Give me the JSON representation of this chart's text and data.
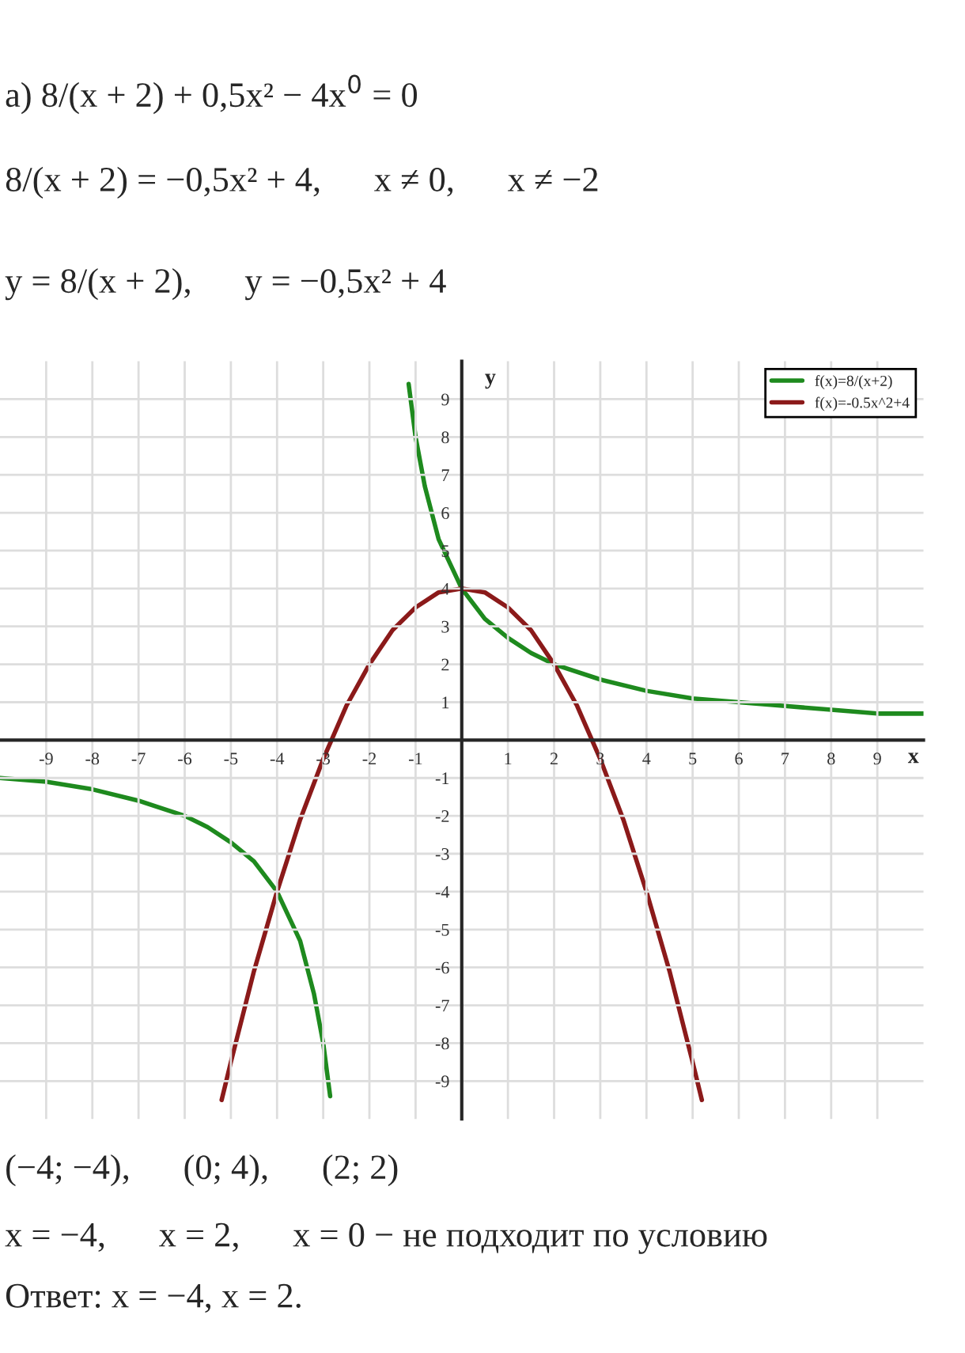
{
  "chart_data": {
    "type": "line",
    "xlabel": "x",
    "ylabel": "y",
    "series": [
      {
        "name": "f(x)=8/(x+2)",
        "color": "#1e8a1e",
        "x": [
          -10,
          -9,
          -8,
          -7,
          -6,
          -5.5,
          -5,
          -4.5,
          -4,
          -3.5,
          -3.2,
          -3,
          -2.85,
          -2,
          -1.15,
          -1,
          -0.8,
          -0.5,
          0,
          0.5,
          1,
          1.5,
          2,
          3,
          4,
          5,
          6,
          7,
          8,
          9,
          10
        ],
        "values": [
          -1,
          -1.1,
          -1.3,
          -1.6,
          -2,
          -2.3,
          -2.7,
          -3.2,
          -4,
          -5.3,
          -6.7,
          -8,
          -9.4,
          null,
          9.4,
          8,
          6.7,
          5.3,
          4,
          3.2,
          2.7,
          2.3,
          2,
          1.6,
          1.3,
          1.1,
          1,
          0.9,
          0.8,
          0.7,
          0.7
        ]
      },
      {
        "name": "f(x)=-0.5x^2+4",
        "color": "#8b1a1a",
        "x": [
          -5.2,
          -5,
          -4.5,
          -4,
          -3.5,
          -3,
          -2.5,
          -2,
          -1.5,
          -1,
          -0.5,
          0,
          0.5,
          1,
          1.5,
          2,
          2.5,
          3,
          3.5,
          4,
          4.5,
          5,
          5.2
        ],
        "values": [
          -9.5,
          -8.5,
          -6.1,
          -4,
          -2.1,
          -0.5,
          0.9,
          2,
          2.9,
          3.5,
          3.9,
          4,
          3.9,
          3.5,
          2.9,
          2,
          0.9,
          -0.5,
          -2.1,
          -4,
          -6.1,
          -8.5,
          -9.5
        ]
      }
    ],
    "xlim": [
      -10,
      10
    ],
    "ylim": [
      -10,
      10
    ],
    "xticks": [
      -9,
      -8,
      -7,
      -6,
      -5,
      -4,
      -3,
      -2,
      -1,
      1,
      2,
      3,
      4,
      5,
      6,
      7,
      8,
      9
    ],
    "yticks": [
      -9,
      -8,
      -7,
      -6,
      -5,
      -4,
      -3,
      -2,
      -1,
      1,
      2,
      3,
      4,
      5,
      6,
      7,
      8,
      9
    ],
    "grid": true,
    "legend": "top right",
    "marker": "none",
    "line_style": "solid",
    "annotations": [
      "a) 8/(x + 2) + 0,5x² − 4x$^{0}$ = 0",
      "8/(x + 2) = −0,5x² + 4,      x ≠ 0,      x ≠ −2",
      "y = 8/(x + 2),      y = −0,5x² + 4",
      "(−4; −4),      (0; 4),      (2; 2)",
      "x = −4,      x = 2,      x = 0 − не подходит по условию",
      "Ответ: x = −4, x = 2."
    ]
  }
}
